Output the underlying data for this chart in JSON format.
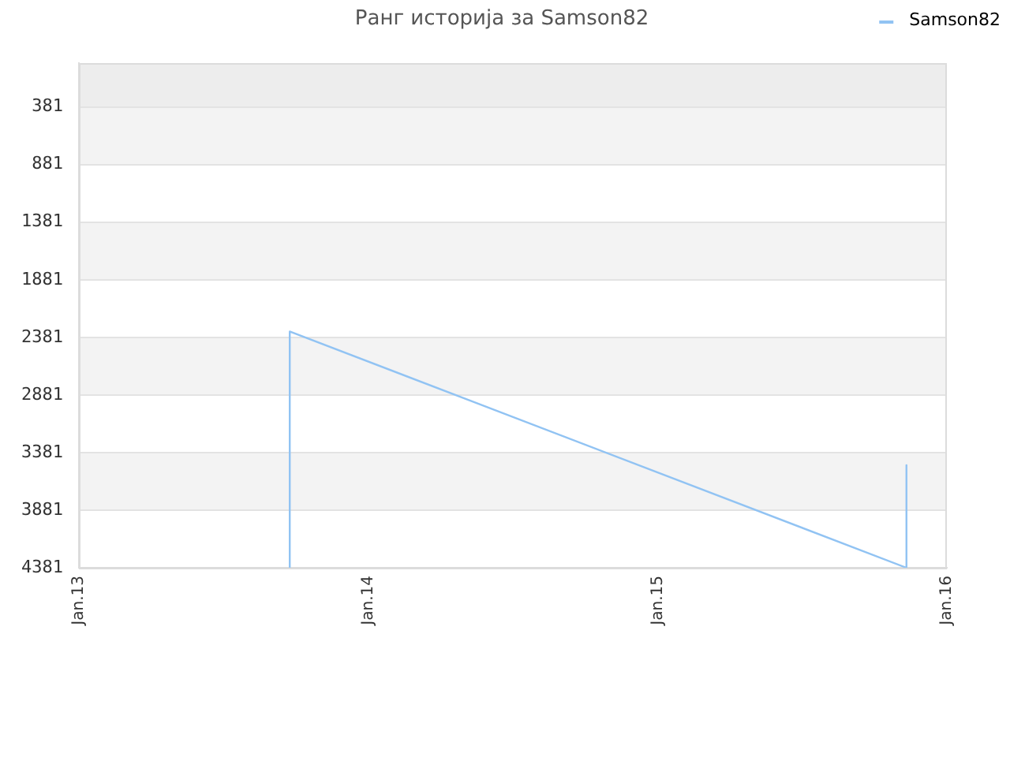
{
  "chart_data": {
    "type": "line",
    "title": "Ранг историја за Samson82",
    "x": [
      "2013-09-24",
      "2013-09-24",
      "2015-11-11",
      "2015-11-11"
    ],
    "series": [
      {
        "name": "Samson82",
        "color": "#91c3f3",
        "values": [
          4381,
          2330,
          4381,
          3490
        ]
      }
    ],
    "xlim": [
      "2013-01-01",
      "2016-01-01"
    ],
    "xticks": [
      {
        "value": "2013-01-01",
        "label": "Jan.13"
      },
      {
        "value": "2014-01-01",
        "label": "Jan.14"
      },
      {
        "value": "2015-01-01",
        "label": "Jan.15"
      },
      {
        "value": "2016-01-01",
        "label": "Jan.16"
      }
    ],
    "ylim": [
      4381,
      0
    ],
    "yticks": [
      381,
      881,
      1381,
      1881,
      2381,
      2881,
      3381,
      3881,
      4381
    ],
    "bands": [
      {
        "axis": "y",
        "from": 0,
        "to": 381,
        "color": "#ededed"
      },
      {
        "axis": "y",
        "from": 381,
        "to": 881,
        "color": "#f3f3f3"
      },
      {
        "axis": "y",
        "from": 1381,
        "to": 1881,
        "color": "#f3f3f3"
      },
      {
        "axis": "y",
        "from": 2381,
        "to": 2881,
        "color": "#f3f3f3"
      },
      {
        "axis": "y",
        "from": 3381,
        "to": 3881,
        "color": "#f3f3f3"
      }
    ],
    "grid": "y",
    "legend": "top right",
    "marker": "none"
  }
}
